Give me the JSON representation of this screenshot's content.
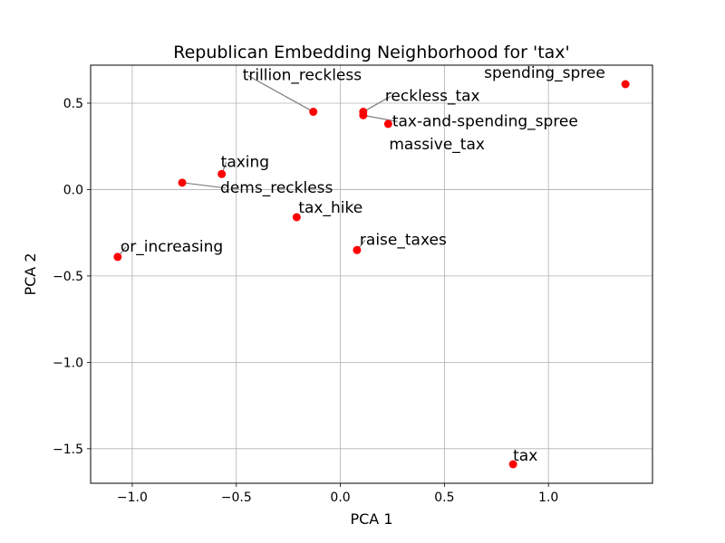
{
  "chart_data": {
    "type": "scatter",
    "title": "Republican Embedding Neighborhood for 'tax'",
    "xlabel": "PCA 1",
    "ylabel": "PCA 2",
    "xlim": [
      -1.2,
      1.5
    ],
    "ylim": [
      -1.7,
      0.72
    ],
    "xticks": [
      -1.0,
      -0.5,
      0.0,
      0.5,
      1.0
    ],
    "xtick_labels": [
      "−1.0",
      "−0.5",
      "0.0",
      "0.5",
      "1.0"
    ],
    "yticks": [
      -1.5,
      -1.0,
      -0.5,
      0.0,
      0.5
    ],
    "ytick_labels": [
      "−1.5",
      "−1.0",
      "−0.5",
      "0.0",
      "0.5"
    ],
    "grid": true,
    "marker_color": "#ff0000",
    "leader_color": "#808080",
    "points": [
      {
        "label": "spending_spree",
        "x": 1.37,
        "y": 0.61
      },
      {
        "label": "trillion_reckless",
        "x": -0.13,
        "y": 0.45
      },
      {
        "label": "reckless_tax",
        "x": 0.11,
        "y": 0.45
      },
      {
        "label": "tax-and-spending_spree",
        "x": 0.11,
        "y": 0.43
      },
      {
        "label": "massive_tax",
        "x": 0.23,
        "y": 0.38
      },
      {
        "label": "taxing",
        "x": -0.57,
        "y": 0.09
      },
      {
        "label": "dems_reckless",
        "x": -0.76,
        "y": 0.04
      },
      {
        "label": "tax_hike",
        "x": -0.21,
        "y": -0.16
      },
      {
        "label": "raise_taxes",
        "x": 0.08,
        "y": -0.35
      },
      {
        "label": "or_increasing",
        "x": -1.07,
        "y": -0.39
      },
      {
        "label": "tax",
        "x": 0.83,
        "y": -1.59
      }
    ]
  }
}
